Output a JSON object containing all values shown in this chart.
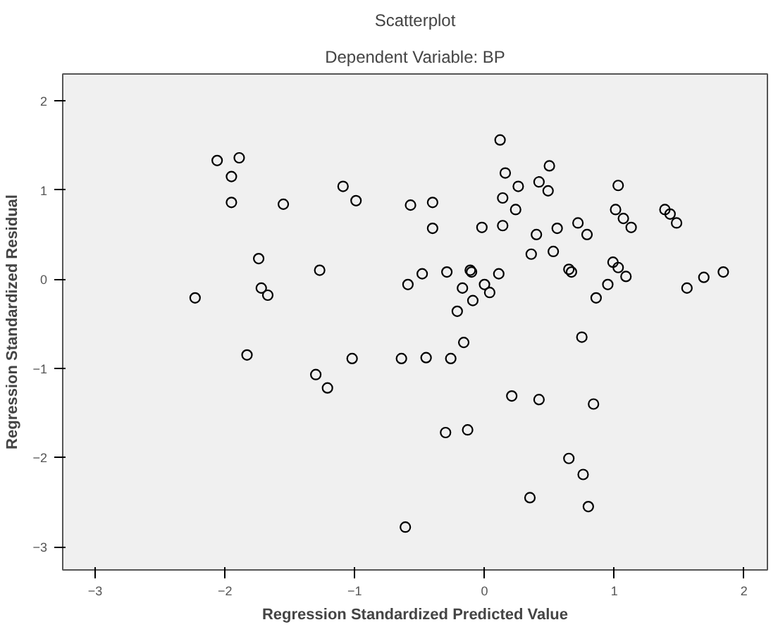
{
  "chart_data": {
    "type": "scatter",
    "title": "Scatterplot",
    "subtitle": "Dependent Variable: BP",
    "xlabel": "Regression Standardized Predicted Value",
    "ylabel": "Regression Standardized Residual",
    "x": [
      -2.23,
      -2.06,
      -1.89,
      -1.95,
      -1.95,
      -1.55,
      -1.74,
      -1.72,
      -1.67,
      -1.27,
      -1.09,
      -0.99,
      -1.83,
      -1.3,
      -1.21,
      -1.02,
      -0.57,
      -0.4,
      -0.4,
      -0.59,
      -0.48,
      -0.29,
      -0.11,
      -0.1,
      -0.17,
      0.0,
      0.04,
      -0.09,
      0.11,
      -0.21,
      -0.16,
      -0.02,
      0.12,
      0.16,
      0.26,
      0.14,
      0.24,
      0.14,
      0.5,
      0.42,
      0.49,
      0.4,
      0.56,
      0.36,
      0.53,
      0.72,
      0.79,
      0.65,
      0.67,
      0.86,
      0.95,
      0.99,
      1.03,
      1.09,
      1.03,
      1.01,
      1.07,
      1.13,
      1.39,
      1.43,
      1.48,
      1.56,
      1.69,
      1.84,
      0.75,
      -0.64,
      -0.45,
      -0.26,
      0.21,
      0.42,
      0.84,
      -0.3,
      -0.13,
      0.65,
      0.76,
      0.35,
      0.8,
      -0.61
    ],
    "values": [
      -0.21,
      1.33,
      1.36,
      1.15,
      0.86,
      0.84,
      0.23,
      -0.1,
      -0.18,
      0.1,
      1.04,
      0.88,
      -0.85,
      -1.07,
      -1.22,
      -0.89,
      0.83,
      0.86,
      0.57,
      -0.06,
      0.06,
      0.08,
      0.1,
      0.08,
      -0.1,
      -0.06,
      -0.15,
      -0.24,
      0.06,
      -0.36,
      -0.71,
      0.58,
      1.56,
      1.19,
      1.04,
      0.91,
      0.78,
      0.6,
      1.27,
      1.09,
      0.99,
      0.5,
      0.57,
      0.28,
      0.31,
      0.63,
      0.5,
      0.11,
      0.08,
      -0.21,
      -0.06,
      0.19,
      0.13,
      0.03,
      1.05,
      0.78,
      0.68,
      0.58,
      0.78,
      0.73,
      0.63,
      -0.1,
      0.02,
      0.08,
      -0.65,
      -0.89,
      -0.88,
      -0.89,
      -1.31,
      -1.35,
      -1.4,
      -1.72,
      -1.69,
      -2.01,
      -2.19,
      -2.45,
      -2.55,
      -2.78
    ],
    "color": "#000000",
    "marker": "circle",
    "xlim": [
      -3.25,
      2.18
    ],
    "ylim": [
      -3.26,
      2.3
    ],
    "xticks": [
      -3,
      -2,
      -1,
      0,
      1,
      2
    ],
    "yticks": [
      -3,
      -2,
      -1,
      0,
      1,
      2
    ]
  }
}
